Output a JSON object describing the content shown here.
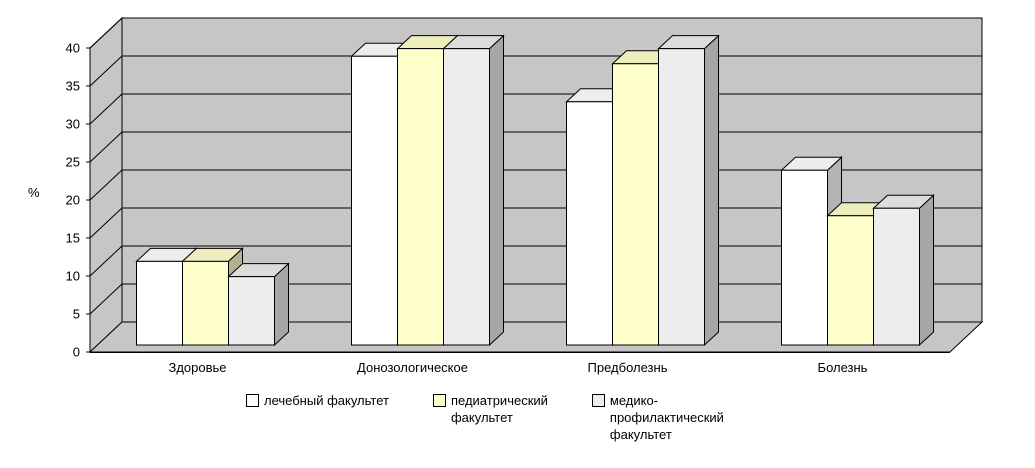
{
  "chart_data": {
    "type": "bar",
    "style": "3d-clustered-column",
    "title": "",
    "xlabel": "",
    "ylabel": "%",
    "ylim": [
      0,
      40
    ],
    "ytick_step": 5,
    "ytick_labels": [
      "0",
      "5",
      "10",
      "15",
      "20",
      "25",
      "30",
      "35",
      "40"
    ],
    "grid": true,
    "legend_position": "bottom",
    "wall_color": "#c6c6c6",
    "axis_color": "#000000",
    "categories": [
      "Здоровье",
      "Донозологическое",
      "Предболезнь",
      "Болезнь"
    ],
    "series": [
      {
        "name": "лечебный факультет",
        "color": "#ffffff",
        "values": [
          11,
          38,
          32,
          23
        ]
      },
      {
        "name": "педиатрический факультет",
        "color": "#ffffcc",
        "values": [
          11,
          39,
          37,
          17
        ]
      },
      {
        "name": "медико-профилактический факультет",
        "color": "#ededed",
        "values": [
          9,
          39,
          39,
          18
        ]
      }
    ]
  },
  "legend": {
    "items": [
      {
        "color": "#ffffff",
        "name": "лечебный факультет",
        "lines": [
          "лечебный факультет"
        ]
      },
      {
        "color": "#ffffcc",
        "name": "педиатрический факультет",
        "lines": [
          "педиатрический",
          "факультет"
        ]
      },
      {
        "color": "#ededed",
        "name": "медико-профилактический факультет",
        "lines": [
          "медико-",
          "профилактический",
          "факультет"
        ]
      }
    ]
  }
}
